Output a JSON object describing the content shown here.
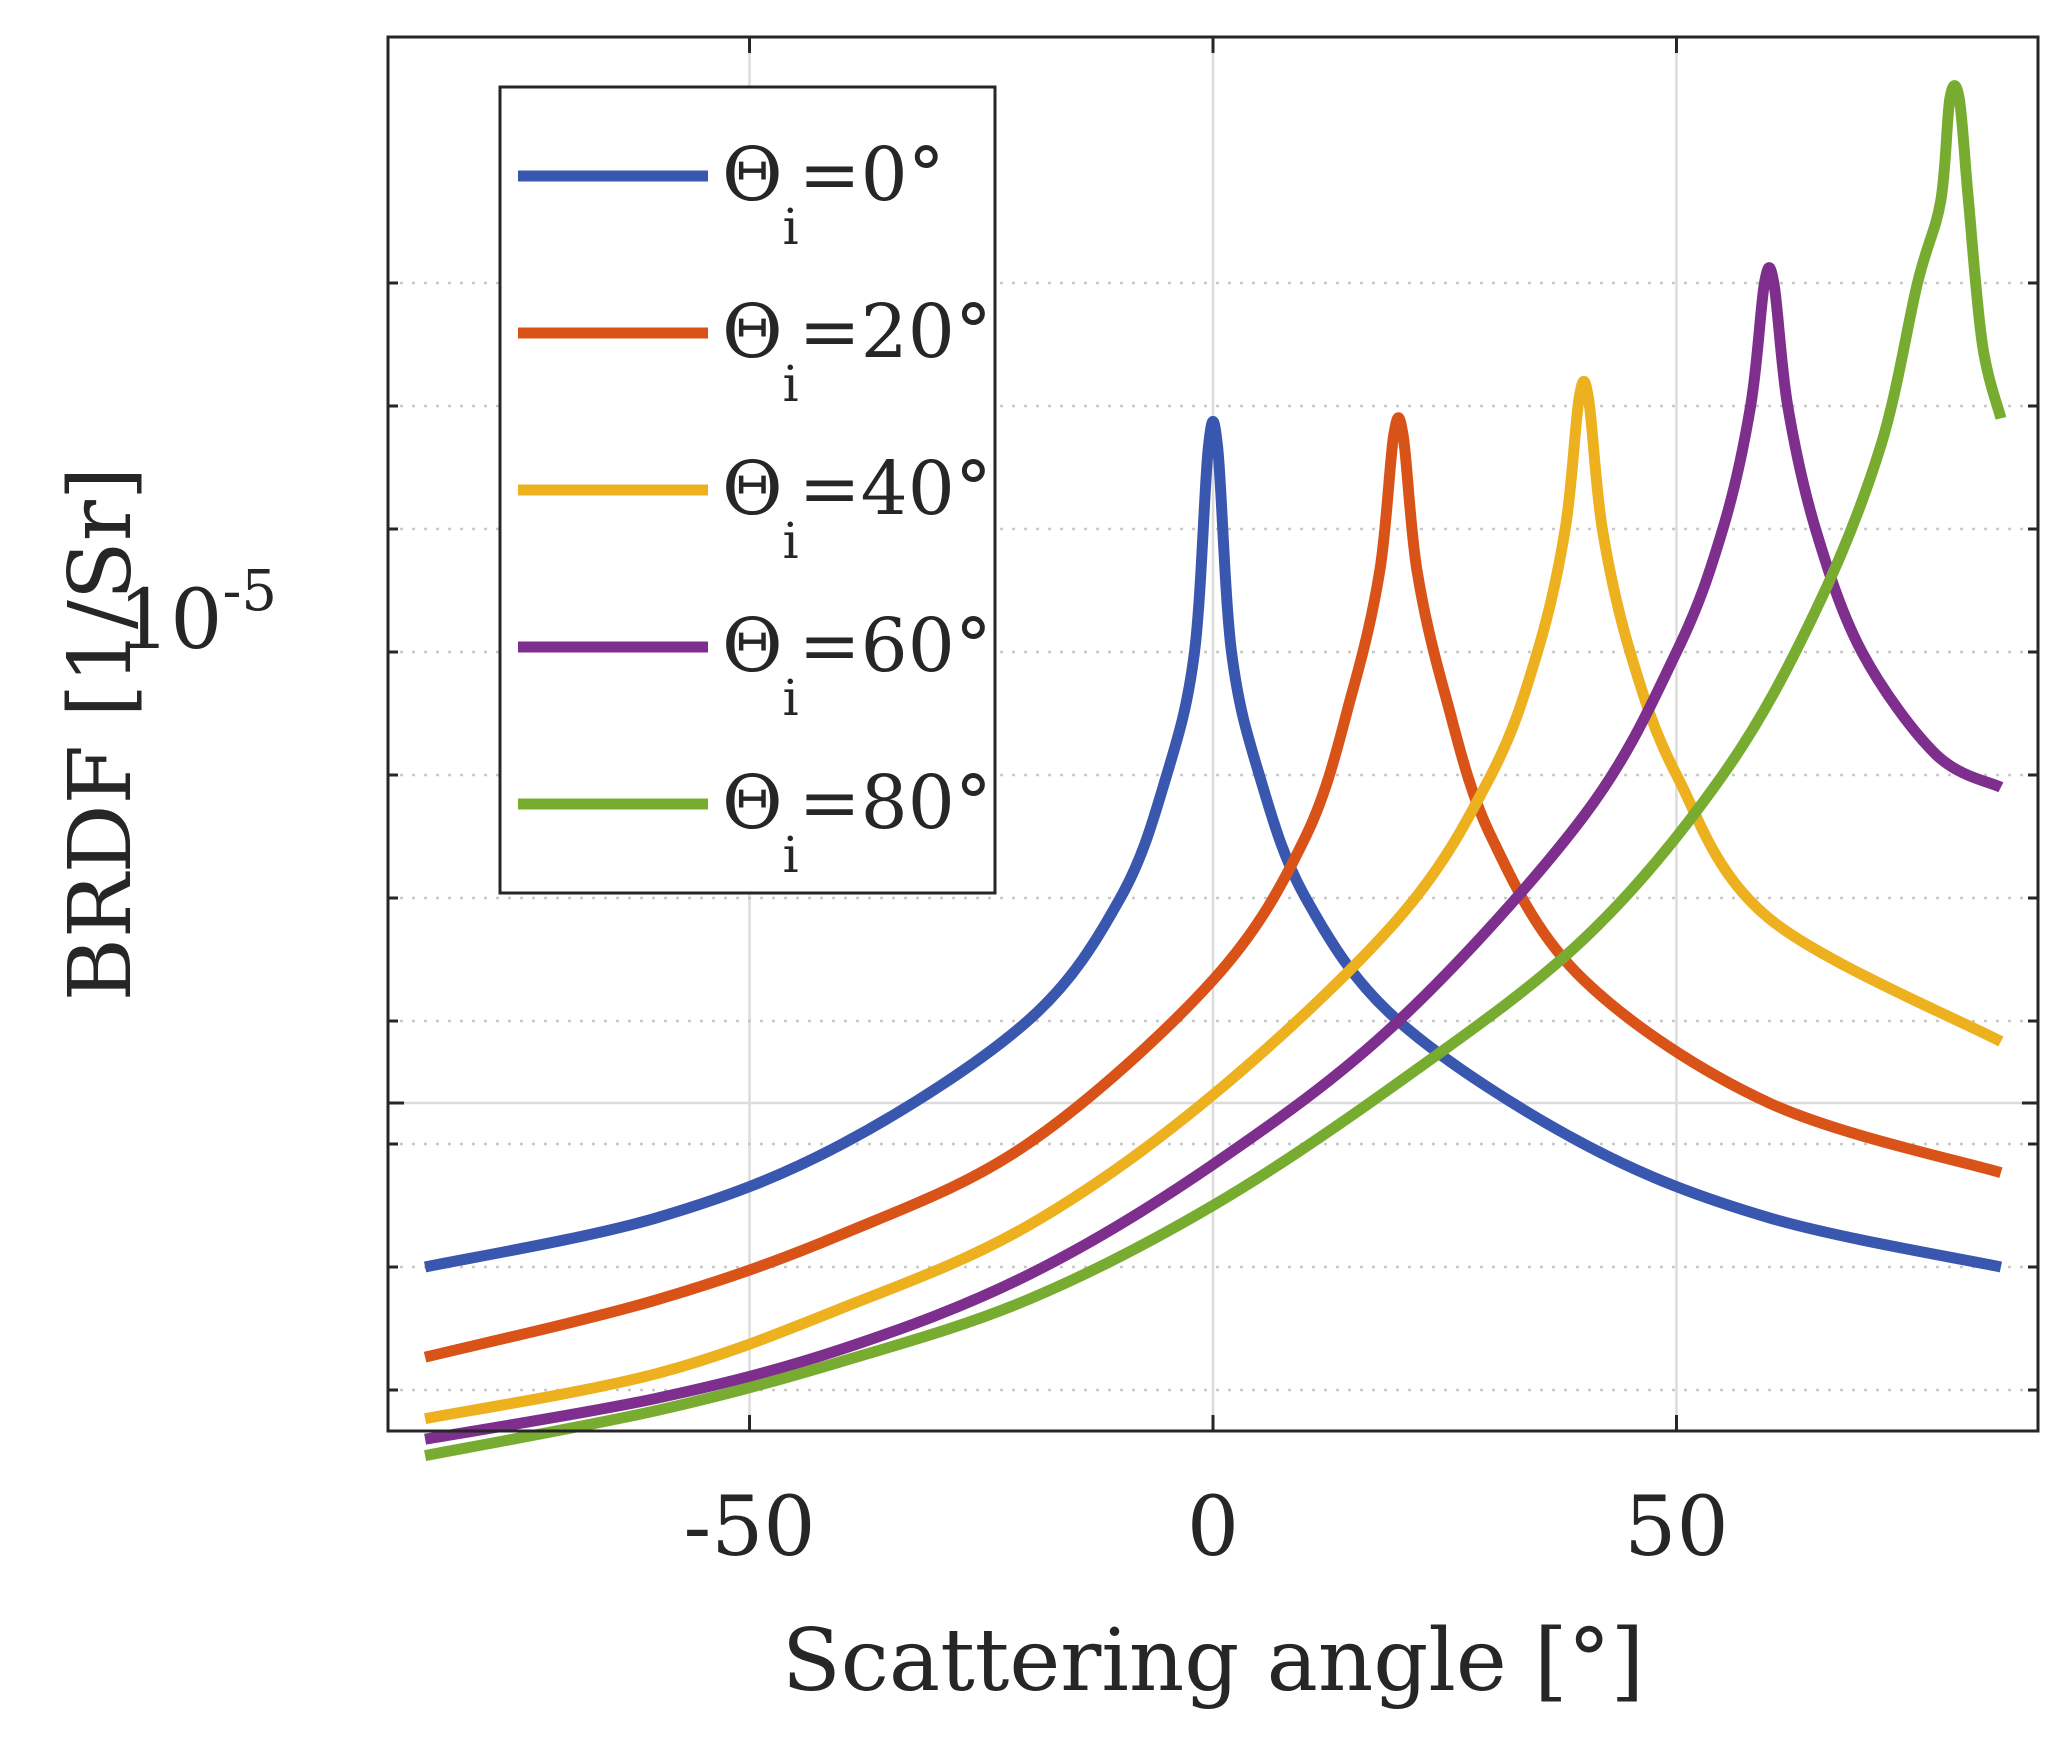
{
  "chart_data": {
    "type": "line",
    "xlabel": "Scattering angle [°]",
    "ylabel": "BRDF [1/Sr]",
    "xlim": [
      -89,
      89
    ],
    "ylim": [
      0.92,
      1.26
    ],
    "y_scale": "log (relative to 10^-5)",
    "xticks": [
      -50,
      0,
      50
    ],
    "xtick_labels": [
      "-50",
      "0",
      "50"
    ],
    "ytick_label": {
      "base": "10",
      "exponent": "-5",
      "value": 1.0
    },
    "y_minor_ticks": [
      0.93,
      0.96,
      0.99,
      1.02,
      1.05,
      1.08,
      1.11,
      1.14,
      1.17,
      1.2
    ],
    "grid": true,
    "legend_position": "top-left",
    "series": [
      {
        "name": "Θi=0°",
        "symbol": "Θ",
        "subscript": "i",
        "suffix": "=0°",
        "color": "#3a57b0",
        "points": [
          [
            -85,
            0.96
          ],
          [
            -60,
            0.972
          ],
          [
            -40,
            0.99
          ],
          [
            -20,
            1.02
          ],
          [
            -10,
            1.05
          ],
          [
            -5,
            1.08
          ],
          [
            -2,
            1.11
          ],
          [
            -0.5,
            1.16
          ],
          [
            0.5,
            1.16
          ],
          [
            2,
            1.11
          ],
          [
            5,
            1.08
          ],
          [
            10,
            1.05
          ],
          [
            20,
            1.02
          ],
          [
            40,
            0.99
          ],
          [
            60,
            0.972
          ],
          [
            85,
            0.96
          ]
        ]
      },
      {
        "name": "Θi=20°",
        "symbol": "Θ",
        "subscript": "i",
        "suffix": "=20°",
        "color": "#d95319",
        "points": [
          [
            -85,
            0.938
          ],
          [
            -60,
            0.952
          ],
          [
            -40,
            0.968
          ],
          [
            -20,
            0.99
          ],
          [
            0,
            1.03
          ],
          [
            10,
            1.065
          ],
          [
            15,
            1.1
          ],
          [
            18,
            1.13
          ],
          [
            19.5,
            1.163
          ],
          [
            20.5,
            1.163
          ],
          [
            22,
            1.13
          ],
          [
            25,
            1.1
          ],
          [
            30,
            1.065
          ],
          [
            40,
            1.03
          ],
          [
            60,
            1.0
          ],
          [
            85,
            0.983
          ]
        ]
      },
      {
        "name": "Θi=40°",
        "symbol": "Θ",
        "subscript": "i",
        "suffix": "=40°",
        "color": "#edb120",
        "points": [
          [
            -85,
            0.923
          ],
          [
            -60,
            0.934
          ],
          [
            -40,
            0.95
          ],
          [
            -20,
            0.97
          ],
          [
            0,
            1.002
          ],
          [
            20,
            1.045
          ],
          [
            30,
            1.08
          ],
          [
            35,
            1.11
          ],
          [
            38,
            1.14
          ],
          [
            39.5,
            1.172
          ],
          [
            40.5,
            1.172
          ],
          [
            42,
            1.14
          ],
          [
            45,
            1.11
          ],
          [
            50,
            1.08
          ],
          [
            60,
            1.045
          ],
          [
            85,
            1.015
          ]
        ]
      },
      {
        "name": "Θi=60°",
        "symbol": "Θ",
        "subscript": "i",
        "suffix": "=60°",
        "color": "#7e2f8e",
        "points": [
          [
            -85,
            0.918
          ],
          [
            -60,
            0.928
          ],
          [
            -40,
            0.94
          ],
          [
            -20,
            0.958
          ],
          [
            0,
            0.985
          ],
          [
            20,
            1.02
          ],
          [
            40,
            1.07
          ],
          [
            50,
            1.11
          ],
          [
            55,
            1.14
          ],
          [
            58,
            1.17
          ],
          [
            59.5,
            1.2
          ],
          [
            60.5,
            1.2
          ],
          [
            62,
            1.17
          ],
          [
            65,
            1.14
          ],
          [
            70,
            1.11
          ],
          [
            78,
            1.085
          ],
          [
            85,
            1.077
          ]
        ]
      },
      {
        "name": "Θi=80°",
        "symbol": "Θ",
        "subscript": "i",
        "suffix": "=80°",
        "color": "#77ac30",
        "points": [
          [
            -85,
            0.914
          ],
          [
            -60,
            0.925
          ],
          [
            -40,
            0.937
          ],
          [
            -20,
            0.952
          ],
          [
            0,
            0.975
          ],
          [
            20,
            1.005
          ],
          [
            40,
            1.04
          ],
          [
            55,
            1.08
          ],
          [
            65,
            1.12
          ],
          [
            72,
            1.16
          ],
          [
            76,
            1.2
          ],
          [
            78.5,
            1.22
          ],
          [
            79.5,
            1.245
          ],
          [
            80.5,
            1.245
          ],
          [
            81.5,
            1.22
          ],
          [
            83,
            1.185
          ],
          [
            85,
            1.167
          ]
        ]
      }
    ]
  }
}
